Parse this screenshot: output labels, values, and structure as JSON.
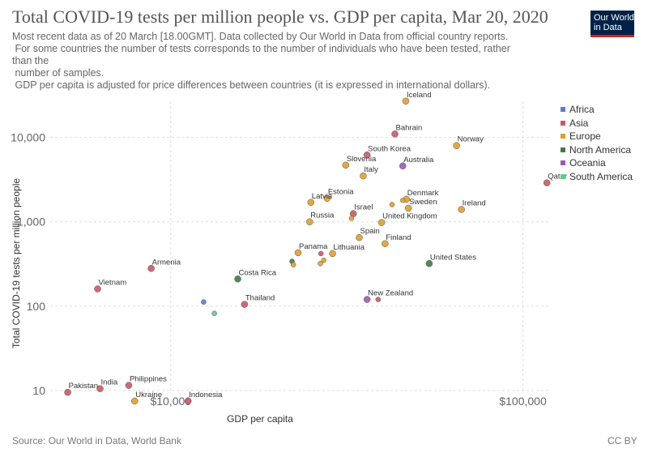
{
  "header": {
    "title": "Total COVID-19 tests per million people vs. GDP per capita, Mar 20, 2020",
    "subtitle_lines": [
      "Most recent data as of 20 March [18.00GMT]. Data collected by Our World in Data from official country reports.",
      " For some countries the number of tests corresponds to the number of individuals who have been tested, rather",
      "than the",
      " number of samples.",
      " GDP per capita is adjusted for price differences between countries (it is expressed in international dollars)."
    ]
  },
  "logo": {
    "line1": "Our World",
    "line2": "in Data"
  },
  "footer": {
    "source": "Source: Our World in Data, World Bank",
    "license": "CC BY"
  },
  "colors": {
    "Africa": "#5b7bd5",
    "Asia": "#c9596a",
    "Europe": "#e29d2e",
    "North America": "#3e7a4a",
    "Oceania": "#9b59b6",
    "South America": "#5fc98a"
  },
  "chart_data": {
    "type": "scatter",
    "xlabel": "GDP per capita",
    "ylabel": "Total COVID-19 tests per million people",
    "xscale": "log",
    "yscale": "log",
    "xlim": [
      4500,
      120000
    ],
    "ylim": [
      8,
      30000
    ],
    "xticks": [
      10000,
      100000
    ],
    "xtick_labels": [
      "$10,000",
      "$100,000"
    ],
    "yticks": [
      10,
      100,
      1000,
      10000
    ],
    "ytick_labels": [
      "10",
      "100",
      "1,000",
      "10,000"
    ],
    "grid": true,
    "legend": {
      "position": "right",
      "entries": [
        "Africa",
        "Asia",
        "Europe",
        "North America",
        "Oceania",
        "South America"
      ]
    },
    "points": [
      {
        "label": "Iceland",
        "x": 46500,
        "y": 27000,
        "region": "Europe"
      },
      {
        "label": "Bahrain",
        "x": 43300,
        "y": 11000,
        "region": "Asia"
      },
      {
        "label": "Norway",
        "x": 64800,
        "y": 8000,
        "region": "Europe"
      },
      {
        "label": "South Korea",
        "x": 36100,
        "y": 6200,
        "region": "Asia"
      },
      {
        "label": "Australia",
        "x": 45600,
        "y": 4600,
        "region": "Oceania"
      },
      {
        "label": "Slovenia",
        "x": 31400,
        "y": 4700,
        "region": "Europe"
      },
      {
        "label": "Italy",
        "x": 35200,
        "y": 3500,
        "region": "Europe"
      },
      {
        "label": "Qatar",
        "x": 117000,
        "y": 2900,
        "region": "Asia"
      },
      {
        "label": "Estonia",
        "x": 27800,
        "y": 1900,
        "region": "Europe"
      },
      {
        "label": "Latvia",
        "x": 25000,
        "y": 1700,
        "region": "Europe"
      },
      {
        "label": "Denmark",
        "x": 46700,
        "y": 1850,
        "region": "Europe"
      },
      {
        "label": "",
        "x": 45600,
        "y": 1800,
        "region": "Europe"
      },
      {
        "label": "",
        "x": 42500,
        "y": 1600,
        "region": "Europe"
      },
      {
        "label": "Sweden",
        "x": 47300,
        "y": 1450,
        "region": "Europe"
      },
      {
        "label": "Ireland",
        "x": 66900,
        "y": 1400,
        "region": "Europe"
      },
      {
        "label": "Israel",
        "x": 33000,
        "y": 1250,
        "region": "Asia"
      },
      {
        "label": "",
        "x": 32600,
        "y": 1100,
        "region": "Europe"
      },
      {
        "label": "Russia",
        "x": 24800,
        "y": 1000,
        "region": "Europe"
      },
      {
        "label": "United Kingdom",
        "x": 39700,
        "y": 980,
        "region": "Europe"
      },
      {
        "label": "Spain",
        "x": 34300,
        "y": 650,
        "region": "Europe"
      },
      {
        "label": "Finland",
        "x": 40600,
        "y": 550,
        "region": "Europe"
      },
      {
        "label": "Lithuania",
        "x": 28800,
        "y": 420,
        "region": "Europe"
      },
      {
        "label": "Panama",
        "x": 23000,
        "y": 430,
        "region": "Europe"
      },
      {
        "label": "",
        "x": 26700,
        "y": 420,
        "region": "Asia"
      },
      {
        "label": "",
        "x": 27200,
        "y": 350,
        "region": "Europe"
      },
      {
        "label": "",
        "x": 26600,
        "y": 320,
        "region": "Europe"
      },
      {
        "label": "",
        "x": 22100,
        "y": 340,
        "region": "North America"
      },
      {
        "label": "",
        "x": 22300,
        "y": 310,
        "region": "Europe"
      },
      {
        "label": "United States",
        "x": 54200,
        "y": 320,
        "region": "North America"
      },
      {
        "label": "Armenia",
        "x": 8800,
        "y": 280,
        "region": "Asia"
      },
      {
        "label": "Costa Rica",
        "x": 15500,
        "y": 210,
        "region": "North America"
      },
      {
        "label": "Vietnam",
        "x": 6200,
        "y": 160,
        "region": "Asia"
      },
      {
        "label": "New Zealand",
        "x": 36100,
        "y": 120,
        "region": "Oceania"
      },
      {
        "label": "",
        "x": 38800,
        "y": 120,
        "region": "Asia"
      },
      {
        "label": "Thailand",
        "x": 16200,
        "y": 105,
        "region": "Asia"
      },
      {
        "label": "",
        "x": 12400,
        "y": 112,
        "region": "Africa"
      },
      {
        "label": "",
        "x": 13300,
        "y": 82,
        "region": "South America"
      },
      {
        "label": "Philippines",
        "x": 7600,
        "y": 11.5,
        "region": "Asia"
      },
      {
        "label": "India",
        "x": 6300,
        "y": 10.5,
        "region": "Asia"
      },
      {
        "label": "Pakistan",
        "x": 5100,
        "y": 9.5,
        "region": "Asia"
      },
      {
        "label": "Ukraine",
        "x": 7900,
        "y": 7.5,
        "region": "Europe"
      },
      {
        "label": "Indonesia",
        "x": 11200,
        "y": 7.5,
        "region": "Asia"
      }
    ]
  }
}
